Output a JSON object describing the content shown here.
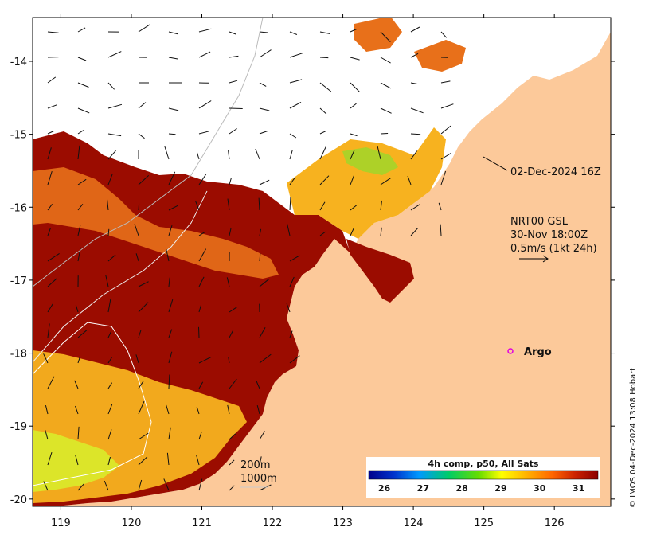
{
  "map": {
    "x_ticks": [
      "119",
      "120",
      "121",
      "122",
      "123",
      "124",
      "125",
      "126"
    ],
    "y_ticks": [
      "-14",
      "-15",
      "-16",
      "-17",
      "-18",
      "-19",
      "-20"
    ],
    "x_range": [
      118.6,
      126.8
    ],
    "y_range": [
      -20.1,
      -13.4
    ]
  },
  "annotations": {
    "timestamp": "02-Dec-2024 16Z",
    "currents_title": "NRT00 GSL",
    "currents_time": "30-Nov 18:00Z",
    "currents_scale": "0.5m/s (1kt 24h)",
    "argo_label": "Argo",
    "isobath_200": "200m",
    "isobath_1000": "1000m"
  },
  "colorbar": {
    "title": "4h comp, p50, All Sats",
    "ticks": [
      "26",
      "27",
      "28",
      "29",
      "30",
      "31"
    ],
    "range": [
      25.6,
      31.5
    ],
    "colors": [
      "#00008b",
      "#0033cc",
      "#0099ff",
      "#00cc66",
      "#66dd00",
      "#ffff00",
      "#ffaa00",
      "#ff6600",
      "#cc2200",
      "#8b0000"
    ]
  },
  "credit": "© IMOS 04-Dec-2024 13:08 Hobart",
  "colors": {
    "land": "#fcc99a",
    "sst_hot": "#9b0c00",
    "sst_warm": "#e8701a",
    "sst_mid": "#f7b21f",
    "sst_cool": "#d8f02c",
    "argo": "#e000e0"
  }
}
